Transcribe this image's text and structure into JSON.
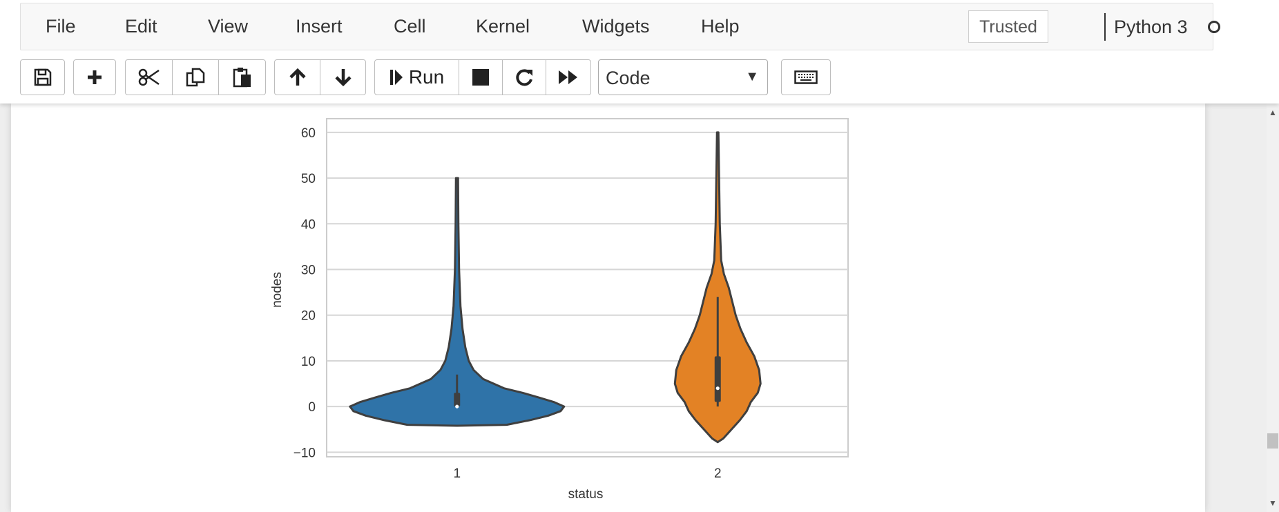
{
  "menubar": {
    "items": [
      "File",
      "Edit",
      "View",
      "Insert",
      "Cell",
      "Kernel",
      "Widgets",
      "Help"
    ],
    "trusted_label": "Trusted",
    "kernel_name": "Python 3"
  },
  "toolbar": {
    "run_label": "Run",
    "cell_type": "Code",
    "icons": [
      "save-icon",
      "plus-icon",
      "scissors-icon",
      "copy-icon",
      "paste-icon",
      "arrow-up-icon",
      "arrow-down-icon",
      "step-icon",
      "stop-icon",
      "restart-icon",
      "fast-forward-icon",
      "keyboard-icon"
    ]
  },
  "chart_data": {
    "type": "violin",
    "title": "",
    "xlabel": "status",
    "ylabel": "nodes",
    "categories": [
      "1",
      "2"
    ],
    "ylim": [
      -11,
      63
    ],
    "yticks": [
      -10,
      0,
      10,
      20,
      30,
      40,
      50,
      60
    ],
    "grid": true,
    "series": [
      {
        "category": "1",
        "color": "#2f73a8",
        "min": 0,
        "q1": 0,
        "median": 0,
        "q3": 3,
        "whisker_high": 7,
        "max": 50
      },
      {
        "category": "2",
        "color": "#e38225",
        "min": 0,
        "q1": 1,
        "median": 4,
        "q3": 11,
        "whisker_high": 24,
        "max": 60
      }
    ]
  }
}
